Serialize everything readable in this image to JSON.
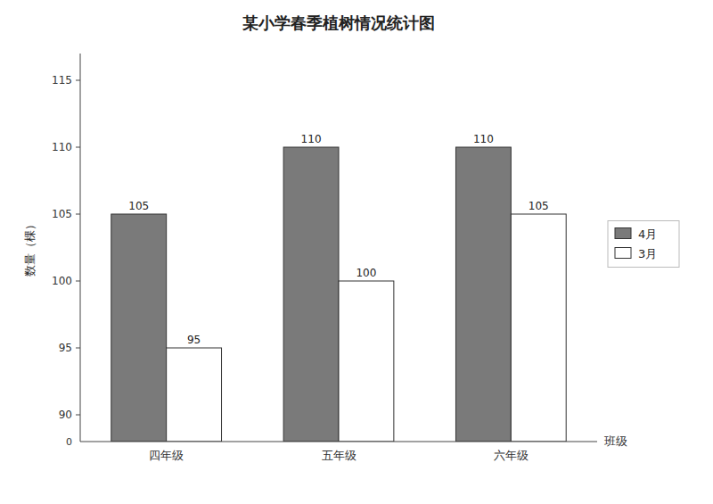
{
  "chart_data": {
    "type": "bar",
    "title": "某小学春季植树情况统计图",
    "xlabel": "班级",
    "ylabel": "数量（棵）",
    "categories": [
      "四年级",
      "五年级",
      "六年级"
    ],
    "series": [
      {
        "name": "4月",
        "color": "#7a7a7a",
        "values": [
          105,
          110,
          110
        ]
      },
      {
        "name": "3月",
        "color": "#ffffff",
        "values": [
          95,
          100,
          105
        ]
      }
    ],
    "ylim": [
      88,
      117
    ],
    "yticks": [
      90,
      95,
      100,
      105,
      110,
      115
    ],
    "grid": false,
    "legend": "right",
    "data_labels": true,
    "annotations": [
      "0"
    ]
  }
}
